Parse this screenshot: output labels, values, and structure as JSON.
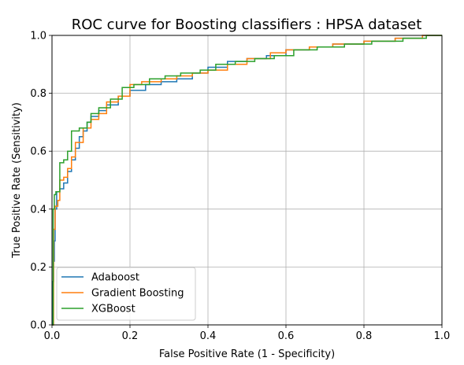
{
  "chart_data": {
    "type": "line",
    "title": "ROC curve for Boosting classifiers : HPSA dataset",
    "xlabel": "False Positive Rate (1 - Specificity)",
    "ylabel": "True Positive Rate (Sensitivity)",
    "xlim": [
      0.0,
      1.0
    ],
    "ylim": [
      0.0,
      1.0
    ],
    "xticks": [
      "0.0",
      "0.2",
      "0.4",
      "0.6",
      "0.8",
      "1.0"
    ],
    "yticks": [
      "0.0",
      "0.2",
      "0.4",
      "0.6",
      "0.8",
      "1.0"
    ],
    "grid": true,
    "legend_position": "lower-left",
    "series": [
      {
        "name": "Adaboost",
        "color": "#1f77b4",
        "x": [
          0.0,
          0.002,
          0.002,
          0.004,
          0.004,
          0.006,
          0.006,
          0.008,
          0.008,
          0.012,
          0.012,
          0.02,
          0.02,
          0.03,
          0.03,
          0.04,
          0.04,
          0.05,
          0.05,
          0.06,
          0.06,
          0.07,
          0.07,
          0.08,
          0.08,
          0.09,
          0.09,
          0.1,
          0.1,
          0.12,
          0.12,
          0.14,
          0.14,
          0.17,
          0.17,
          0.2,
          0.2,
          0.24,
          0.24,
          0.28,
          0.28,
          0.32,
          0.32,
          0.36,
          0.36,
          0.4,
          0.4,
          0.45,
          0.45,
          0.5,
          0.5,
          0.55,
          0.55,
          0.6,
          0.6,
          0.66,
          0.66,
          0.72,
          0.72,
          0.8,
          0.8,
          0.88,
          0.88,
          0.95,
          0.95,
          1.0
        ],
        "y": [
          0.0,
          0.0,
          0.15,
          0.15,
          0.22,
          0.22,
          0.29,
          0.29,
          0.4,
          0.4,
          0.46,
          0.46,
          0.47,
          0.47,
          0.49,
          0.49,
          0.53,
          0.53,
          0.57,
          0.57,
          0.61,
          0.61,
          0.65,
          0.65,
          0.67,
          0.67,
          0.7,
          0.7,
          0.72,
          0.72,
          0.74,
          0.74,
          0.76,
          0.76,
          0.79,
          0.79,
          0.81,
          0.81,
          0.83,
          0.83,
          0.84,
          0.84,
          0.85,
          0.85,
          0.87,
          0.87,
          0.89,
          0.89,
          0.91,
          0.91,
          0.92,
          0.92,
          0.93,
          0.93,
          0.95,
          0.95,
          0.96,
          0.96,
          0.97,
          0.97,
          0.98,
          0.98,
          0.99,
          0.99,
          1.0,
          1.0
        ]
      },
      {
        "name": "Gradient Boosting",
        "color": "#ff7f0e",
        "x": [
          0.0,
          0.004,
          0.004,
          0.008,
          0.008,
          0.015,
          0.015,
          0.02,
          0.02,
          0.03,
          0.03,
          0.04,
          0.04,
          0.05,
          0.05,
          0.06,
          0.06,
          0.08,
          0.08,
          0.1,
          0.1,
          0.12,
          0.12,
          0.14,
          0.14,
          0.17,
          0.17,
          0.2,
          0.2,
          0.23,
          0.23,
          0.28,
          0.28,
          0.32,
          0.32,
          0.36,
          0.36,
          0.4,
          0.4,
          0.45,
          0.45,
          0.5,
          0.5,
          0.56,
          0.56,
          0.6,
          0.6,
          0.66,
          0.66,
          0.72,
          0.72,
          0.8,
          0.8,
          0.88,
          0.88,
          0.95,
          0.95,
          1.0
        ],
        "y": [
          0.0,
          0.0,
          0.33,
          0.33,
          0.41,
          0.41,
          0.43,
          0.43,
          0.5,
          0.5,
          0.51,
          0.51,
          0.54,
          0.54,
          0.58,
          0.58,
          0.63,
          0.63,
          0.68,
          0.68,
          0.71,
          0.71,
          0.73,
          0.73,
          0.77,
          0.77,
          0.79,
          0.79,
          0.83,
          0.83,
          0.84,
          0.84,
          0.85,
          0.85,
          0.86,
          0.86,
          0.87,
          0.87,
          0.88,
          0.88,
          0.9,
          0.9,
          0.92,
          0.92,
          0.94,
          0.94,
          0.95,
          0.95,
          0.96,
          0.96,
          0.97,
          0.97,
          0.98,
          0.98,
          0.99,
          0.99,
          1.0,
          1.0
        ]
      },
      {
        "name": "XGBoost",
        "color": "#2ca02c",
        "x": [
          0.0,
          0.003,
          0.003,
          0.006,
          0.006,
          0.01,
          0.01,
          0.02,
          0.02,
          0.03,
          0.03,
          0.04,
          0.04,
          0.05,
          0.05,
          0.07,
          0.07,
          0.09,
          0.09,
          0.1,
          0.1,
          0.12,
          0.12,
          0.15,
          0.15,
          0.18,
          0.18,
          0.21,
          0.21,
          0.25,
          0.25,
          0.29,
          0.29,
          0.33,
          0.33,
          0.38,
          0.38,
          0.42,
          0.42,
          0.47,
          0.47,
          0.52,
          0.52,
          0.57,
          0.57,
          0.62,
          0.62,
          0.68,
          0.68,
          0.75,
          0.75,
          0.82,
          0.82,
          0.9,
          0.9,
          0.96,
          0.96,
          1.0
        ],
        "y": [
          0.0,
          0.0,
          0.4,
          0.4,
          0.45,
          0.45,
          0.46,
          0.46,
          0.56,
          0.56,
          0.57,
          0.57,
          0.6,
          0.6,
          0.67,
          0.67,
          0.68,
          0.68,
          0.7,
          0.7,
          0.73,
          0.73,
          0.75,
          0.75,
          0.78,
          0.78,
          0.82,
          0.82,
          0.83,
          0.83,
          0.85,
          0.85,
          0.86,
          0.86,
          0.87,
          0.87,
          0.88,
          0.88,
          0.9,
          0.9,
          0.91,
          0.91,
          0.92,
          0.92,
          0.93,
          0.93,
          0.95,
          0.95,
          0.96,
          0.96,
          0.97,
          0.97,
          0.98,
          0.98,
          0.99,
          0.99,
          1.0,
          1.0
        ]
      }
    ]
  }
}
